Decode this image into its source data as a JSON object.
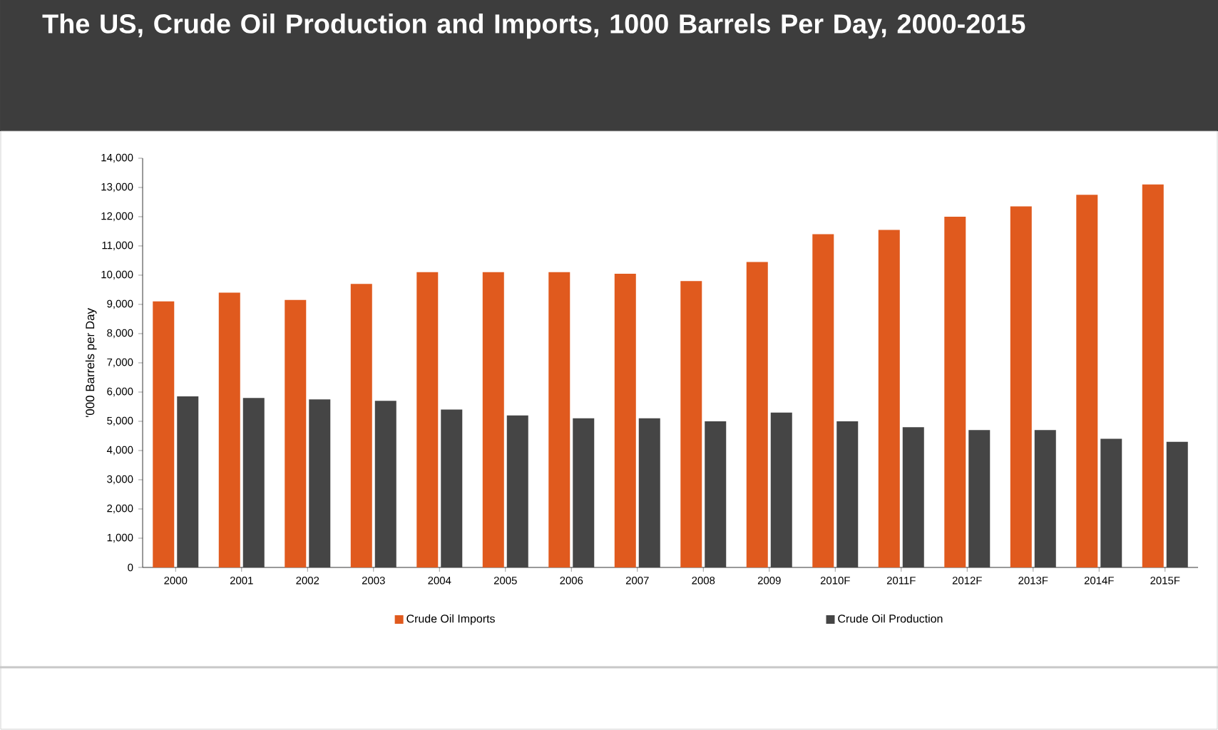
{
  "chart_data": {
    "type": "bar",
    "title": "The US, Crude Oil Production and Imports, 1000 Barrels Per Day, 2000-2015",
    "ylabel": "'000 Barrels per Day",
    "categories": [
      "2000",
      "2001",
      "2002",
      "2003",
      "2004",
      "2005",
      "2006",
      "2007",
      "2008",
      "2009",
      "2010F",
      "2011F",
      "2012F",
      "2013F",
      "2014F",
      "2015F"
    ],
    "series": [
      {
        "name": "Crude Oil Imports",
        "color": "#e05a1e",
        "values": [
          9100,
          9400,
          9150,
          9700,
          10100,
          10100,
          10100,
          10050,
          9800,
          10450,
          11400,
          11550,
          12000,
          12350,
          12750,
          13100
        ]
      },
      {
        "name": "Crude Oil Production",
        "color": "#454545",
        "values": [
          5850,
          5800,
          5750,
          5700,
          5400,
          5200,
          5100,
          5100,
          5000,
          5300,
          5000,
          4800,
          4700,
          4700,
          4400,
          4300
        ]
      }
    ],
    "ylim": [
      0,
      14000
    ],
    "yticks": [
      {
        "value": 0,
        "label": "0"
      },
      {
        "value": 1000,
        "label": "1,000"
      },
      {
        "value": 2000,
        "label": "2,000"
      },
      {
        "value": 3000,
        "label": "3,000"
      },
      {
        "value": 4000,
        "label": "4,000"
      },
      {
        "value": 5000,
        "label": "5,000"
      },
      {
        "value": 6000,
        "label": "6,000"
      },
      {
        "value": 7000,
        "label": "7,000"
      },
      {
        "value": 8000,
        "label": "8,000"
      },
      {
        "value": 9000,
        "label": "9,000"
      },
      {
        "value": 10000,
        "label": "10,000"
      },
      {
        "value": 11000,
        "label": "11,000"
      },
      {
        "value": 12000,
        "label": "12,000"
      },
      {
        "value": 13000,
        "label": "13,000"
      },
      {
        "value": 14000,
        "label": "14,000"
      }
    ],
    "grid": false,
    "legend": "bottom"
  }
}
